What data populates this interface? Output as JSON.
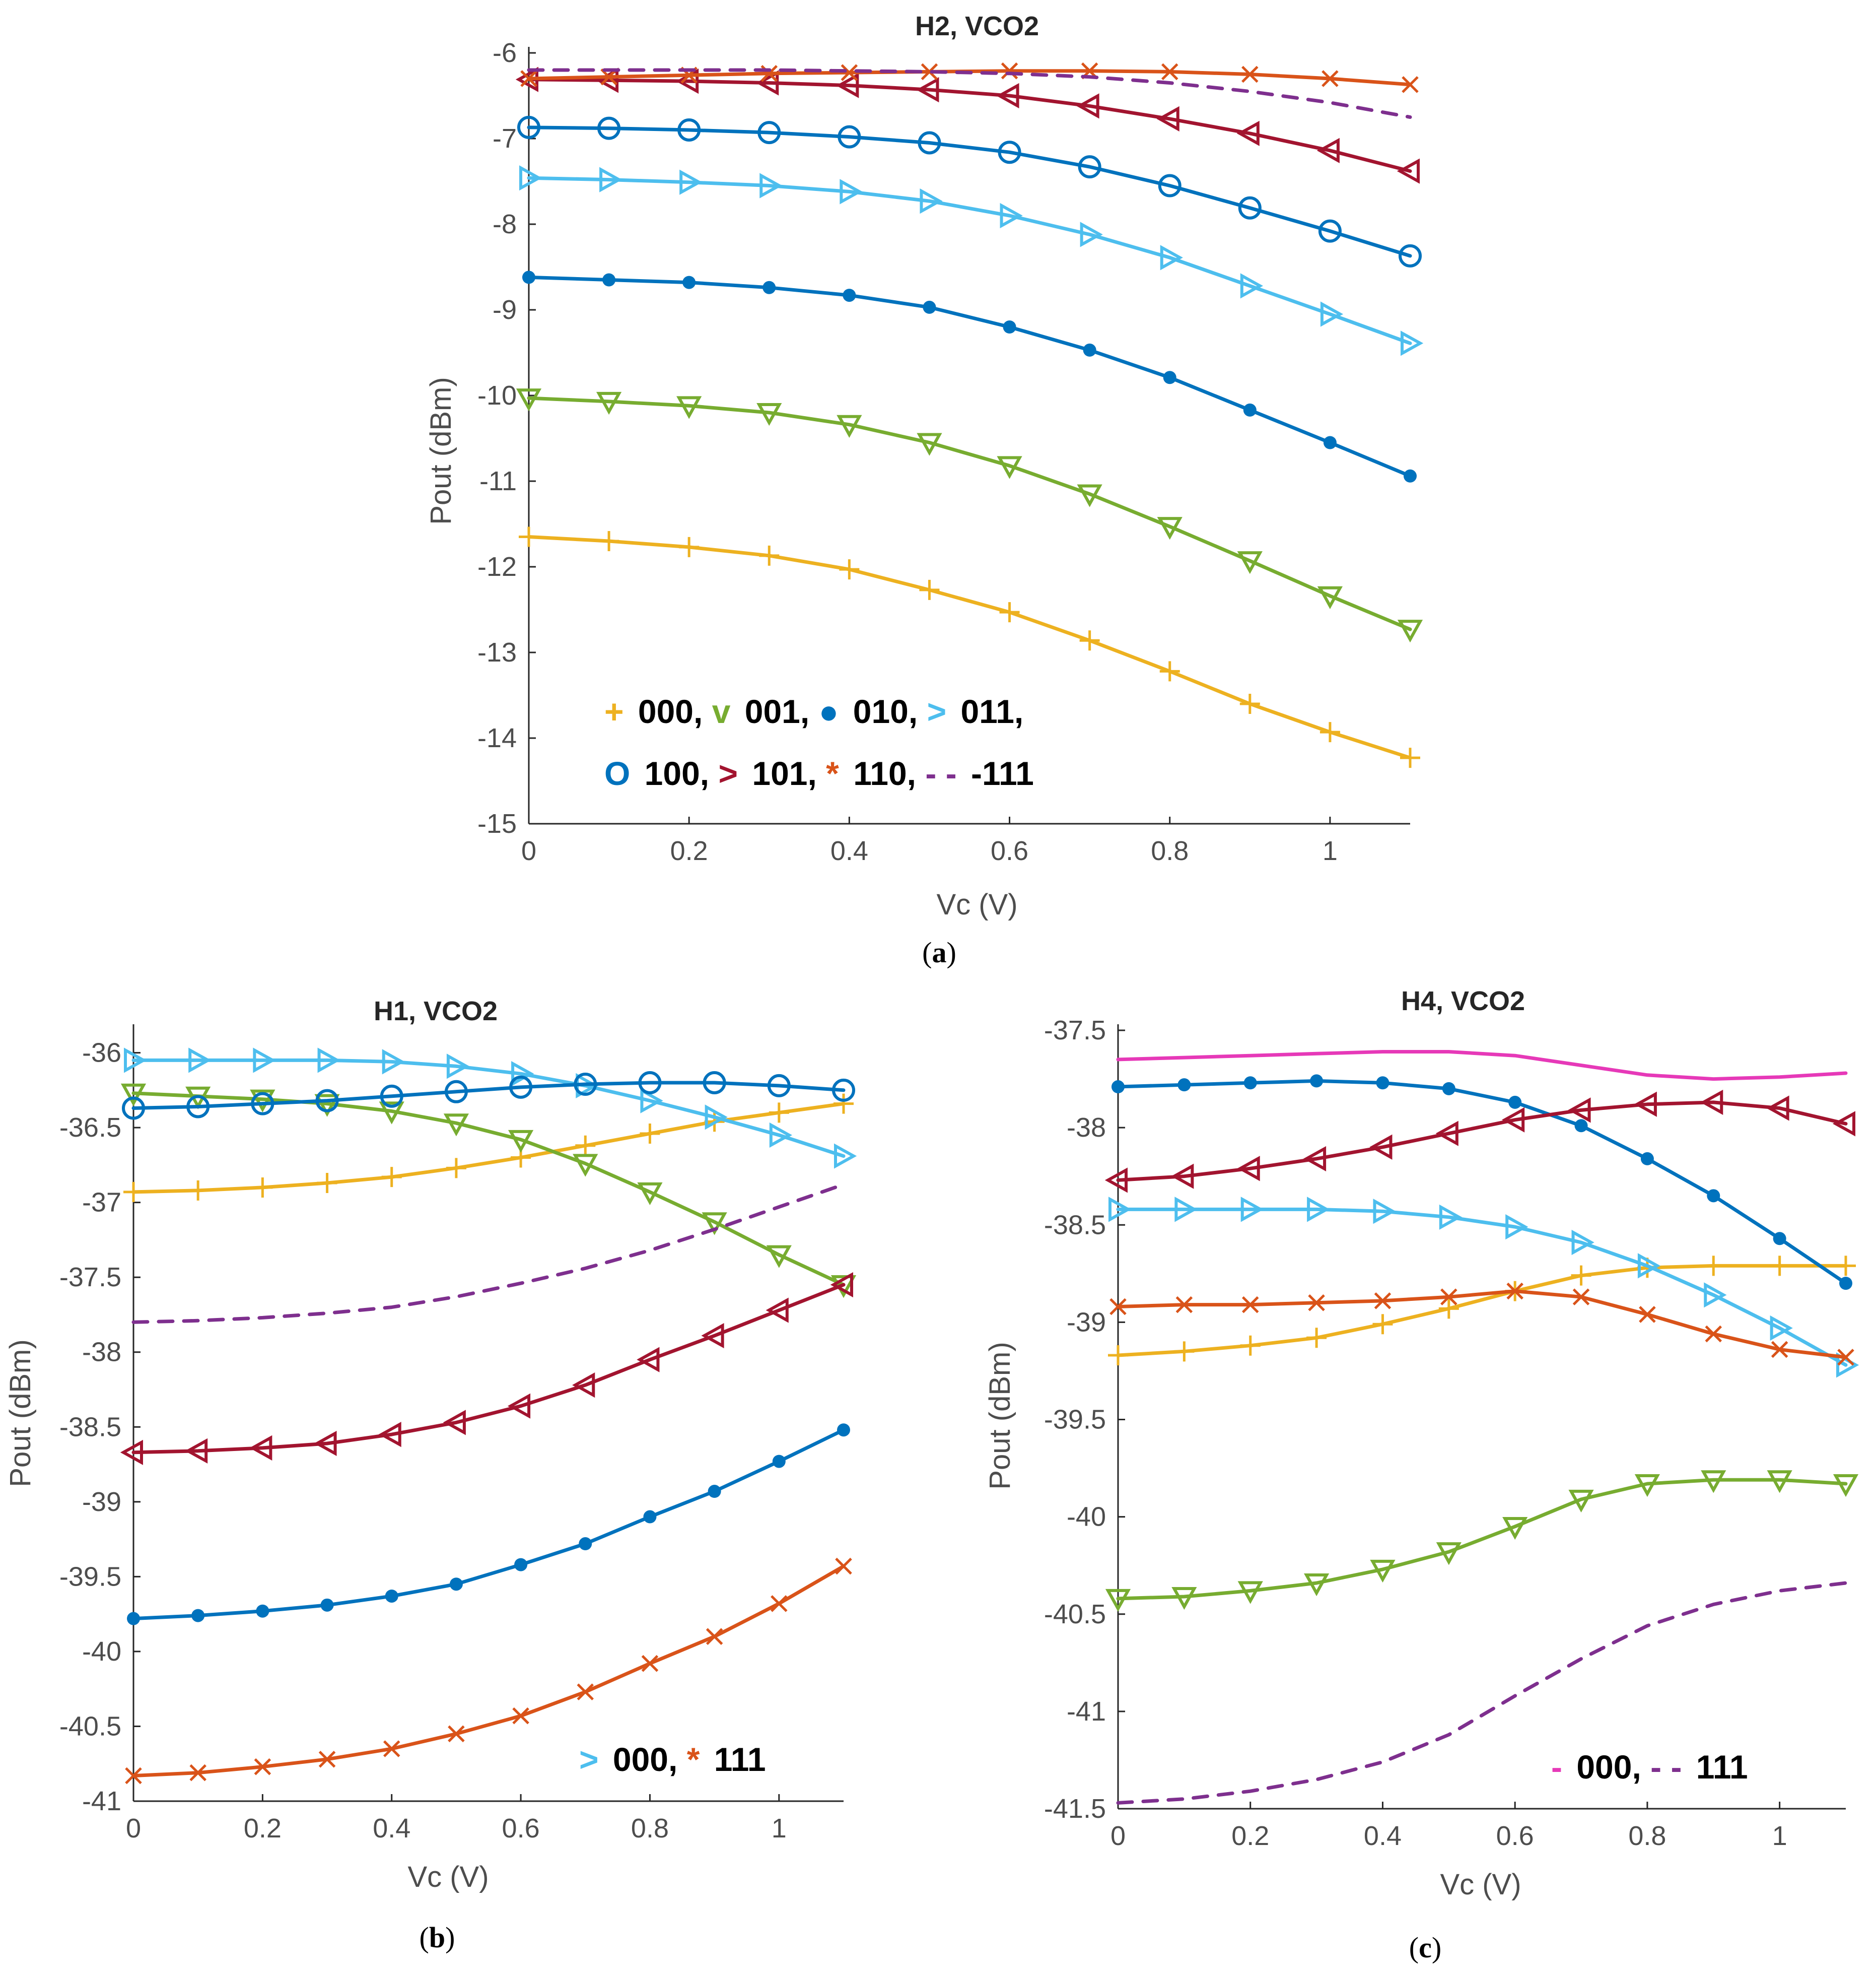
{
  "colors": {
    "c000": "#EDB120",
    "c001": "#77AC30",
    "c010": "#0072BD",
    "c011": "#4DBEEE",
    "c100": "#0072BD",
    "c101": "#A2142F",
    "c110": "#D95319",
    "c111": "#7E2F8E",
    "magenta": "#E639B8",
    "axis": "#262626",
    "ticktext": "#4d4d4d"
  },
  "chart_data": [
    {
      "id": "a",
      "type": "line",
      "title": "H2, VCO2",
      "xlabel": "Vc (V)",
      "ylabel": "Pout (dBm)",
      "caption": "a",
      "xlim": [
        0,
        1.1
      ],
      "ylim": [
        -15,
        -6
      ],
      "xticks": [
        0,
        0.2,
        0.4,
        0.6,
        0.8,
        1
      ],
      "xtick_labels": [
        "0",
        "0.2",
        "0.4",
        "0.6",
        "0.8",
        "1"
      ],
      "yticks": [
        -15,
        -14,
        -13,
        -12,
        -11,
        -10,
        -9,
        -8,
        -7,
        -6
      ],
      "ytick_labels": [
        "-15",
        "-14",
        "-13",
        "-12",
        "-11",
        "-10",
        "-9",
        "-8",
        "-7",
        "-6"
      ],
      "x": [
        0,
        0.1,
        0.2,
        0.3,
        0.4,
        0.5,
        0.6,
        0.7,
        0.8,
        0.9,
        1.0,
        1.1
      ],
      "series": [
        {
          "name": "000",
          "color_key": "c000",
          "marker": "plus",
          "values": [
            -11.65,
            -11.7,
            -11.77,
            -11.87,
            -12.03,
            -12.27,
            -12.53,
            -12.86,
            -13.22,
            -13.6,
            -13.93,
            -14.23
          ]
        },
        {
          "name": "001",
          "color_key": "c001",
          "marker": "tri-down",
          "values": [
            -10.03,
            -10.07,
            -10.12,
            -10.2,
            -10.34,
            -10.55,
            -10.82,
            -11.15,
            -11.53,
            -11.93,
            -12.34,
            -12.73
          ]
        },
        {
          "name": "010",
          "color_key": "c010",
          "marker": "dot",
          "values": [
            -8.62,
            -8.65,
            -8.68,
            -8.74,
            -8.83,
            -8.97,
            -9.2,
            -9.47,
            -9.79,
            -10.17,
            -10.55,
            -10.94
          ]
        },
        {
          "name": "011",
          "color_key": "c011",
          "marker": "tri-right",
          "values": [
            -7.46,
            -7.48,
            -7.51,
            -7.55,
            -7.62,
            -7.73,
            -7.9,
            -8.12,
            -8.39,
            -8.72,
            -9.05,
            -9.39
          ]
        },
        {
          "name": "100",
          "color_key": "c100",
          "marker": "circle",
          "values": [
            -6.87,
            -6.88,
            -6.9,
            -6.93,
            -6.98,
            -7.05,
            -7.16,
            -7.33,
            -7.55,
            -7.81,
            -8.08,
            -8.37
          ]
        },
        {
          "name": "101",
          "color_key": "c101",
          "marker": "tri-left",
          "values": [
            -6.31,
            -6.32,
            -6.33,
            -6.35,
            -6.38,
            -6.43,
            -6.5,
            -6.62,
            -6.77,
            -6.94,
            -7.14,
            -7.38
          ]
        },
        {
          "name": "110",
          "color_key": "c110",
          "marker": "x",
          "values": [
            -6.3,
            -6.28,
            -6.26,
            -6.24,
            -6.23,
            -6.22,
            -6.21,
            -6.21,
            -6.22,
            -6.25,
            -6.3,
            -6.37
          ]
        },
        {
          "name": "111",
          "color_key": "c111",
          "marker": "dashed",
          "values": [
            -6.2,
            -6.2,
            -6.2,
            -6.2,
            -6.21,
            -6.22,
            -6.24,
            -6.28,
            -6.35,
            -6.45,
            -6.58,
            -6.75
          ]
        }
      ],
      "legend": {
        "location": "bottom-left",
        "rows": [
          [
            {
              "sym": "+",
              "color_key": "c000",
              "text": "000,"
            },
            {
              "sym": "v",
              "color_key": "c001",
              "text": "001,"
            },
            {
              "sym": "●",
              "color_key": "c010",
              "text": "010,"
            },
            {
              "sym": ">",
              "color_key": "c011",
              "text": "011,"
            }
          ],
          [
            {
              "sym": "O",
              "color_key": "c100",
              "text": "100,"
            },
            {
              "sym": ">",
              "color_key": "c101",
              "text": "101,"
            },
            {
              "sym": "*",
              "color_key": "c110",
              "text": "110,"
            },
            {
              "sym": "- -",
              "color_key": "c111",
              "text": "-111"
            }
          ]
        ]
      }
    },
    {
      "id": "b",
      "type": "line",
      "title": "H1, VCO2",
      "xlabel": "Vc (V)",
      "ylabel": "Pout (dBm)",
      "caption": "b",
      "xlim": [
        0,
        1.1
      ],
      "ylim": [
        -41,
        -35.85
      ],
      "xticks": [
        0,
        0.2,
        0.4,
        0.6,
        0.8,
        1
      ],
      "xtick_labels": [
        "0",
        "0.2",
        "0.4",
        "0.6",
        "0.8",
        "1"
      ],
      "yticks": [
        -41,
        -40.5,
        -40,
        -39.5,
        -39,
        -38.5,
        -38,
        -37.5,
        -37,
        -36.5,
        -36
      ],
      "ytick_labels": [
        "-41",
        "-40.5",
        "-40",
        "-39.5",
        "-39",
        "-38.5",
        "-38",
        "-37.5",
        "-37",
        "-36.5",
        "-36"
      ],
      "x": [
        0,
        0.1,
        0.2,
        0.3,
        0.4,
        0.5,
        0.6,
        0.7,
        0.8,
        0.9,
        1.0,
        1.1
      ],
      "series": [
        {
          "name": "000",
          "color_key": "c000",
          "marker": "plus",
          "values": [
            -36.93,
            -36.92,
            -36.9,
            -36.87,
            -36.83,
            -36.77,
            -36.7,
            -36.62,
            -36.54,
            -36.46,
            -36.4,
            -36.34
          ]
        },
        {
          "name": "001",
          "color_key": "c001",
          "marker": "tri-down",
          "values": [
            -36.27,
            -36.29,
            -36.31,
            -36.34,
            -36.39,
            -36.47,
            -36.58,
            -36.74,
            -36.93,
            -37.13,
            -37.35,
            -37.55
          ]
        },
        {
          "name": "010",
          "color_key": "c010",
          "marker": "dot",
          "values": [
            -39.78,
            -39.76,
            -39.73,
            -39.69,
            -39.63,
            -39.55,
            -39.42,
            -39.28,
            -39.1,
            -38.93,
            -38.73,
            -38.52
          ]
        },
        {
          "name": "011",
          "color_key": "c011",
          "marker": "tri-right",
          "values": [
            -36.05,
            -36.05,
            -36.05,
            -36.05,
            -36.06,
            -36.09,
            -36.14,
            -36.22,
            -36.32,
            -36.43,
            -36.55,
            -36.69
          ]
        },
        {
          "name": "100",
          "color_key": "c100",
          "marker": "circle",
          "values": [
            -36.37,
            -36.36,
            -36.34,
            -36.32,
            -36.29,
            -36.26,
            -36.23,
            -36.21,
            -36.2,
            -36.2,
            -36.22,
            -36.25
          ]
        },
        {
          "name": "101",
          "color_key": "c101",
          "marker": "tri-left",
          "values": [
            -38.67,
            -38.66,
            -38.64,
            -38.61,
            -38.55,
            -38.47,
            -38.36,
            -38.22,
            -38.05,
            -37.89,
            -37.72,
            -37.55
          ]
        },
        {
          "name": "110",
          "color_key": "c110",
          "marker": "x",
          "values": [
            -40.83,
            -40.81,
            -40.77,
            -40.72,
            -40.65,
            -40.55,
            -40.43,
            -40.27,
            -40.08,
            -39.9,
            -39.68,
            -39.43
          ]
        },
        {
          "name": "111",
          "color_key": "c111",
          "marker": "dashed",
          "values": [
            -37.8,
            -37.79,
            -37.77,
            -37.74,
            -37.7,
            -37.63,
            -37.54,
            -37.44,
            -37.32,
            -37.18,
            -37.03,
            -36.88
          ]
        }
      ],
      "legend": {
        "location": "bottom-right",
        "rows": [
          [
            {
              "sym": ">",
              "color_key": "c011",
              "text": "000,"
            },
            {
              "sym": "*",
              "color_key": "c110",
              "text": "111"
            }
          ]
        ]
      }
    },
    {
      "id": "c",
      "type": "line",
      "title": "H4, VCO2",
      "xlabel": "Vc (V)",
      "ylabel": "Pout (dBm)",
      "caption": "c",
      "xlim": [
        0,
        1.1
      ],
      "ylim": [
        -41.5,
        -37.5
      ],
      "xticks": [
        0,
        0.2,
        0.4,
        0.6,
        0.8,
        1
      ],
      "xtick_labels": [
        "0",
        "0.2",
        "0.4",
        "0.6",
        "0.8",
        "1"
      ],
      "yticks": [
        -41.5,
        -41,
        -40.5,
        -40,
        -39.5,
        -39,
        -38.5,
        -38,
        -37.5
      ],
      "ytick_labels": [
        "-41.5",
        "-41",
        "-40.5",
        "-40",
        "-39.5",
        "-39",
        "-38.5",
        "-38",
        "-37.5"
      ],
      "x": [
        0,
        0.1,
        0.2,
        0.3,
        0.4,
        0.5,
        0.6,
        0.7,
        0.8,
        0.9,
        1.0,
        1.1
      ],
      "series": [
        {
          "name": "000",
          "color_key": "c000",
          "marker": "plus",
          "values": [
            -39.17,
            -39.15,
            -39.12,
            -39.08,
            -39.01,
            -38.93,
            -38.84,
            -38.76,
            -38.72,
            -38.71,
            -38.71,
            -38.71
          ]
        },
        {
          "name": "001",
          "color_key": "c001",
          "marker": "tri-down",
          "values": [
            -40.42,
            -40.41,
            -40.38,
            -40.34,
            -40.27,
            -40.18,
            -40.05,
            -39.91,
            -39.83,
            -39.81,
            -39.81,
            -39.83
          ]
        },
        {
          "name": "010",
          "color_key": "c010",
          "marker": "dot",
          "values": [
            -37.79,
            -37.78,
            -37.77,
            -37.76,
            -37.77,
            -37.8,
            -37.87,
            -37.99,
            -38.16,
            -38.35,
            -38.57,
            -38.8
          ]
        },
        {
          "name": "011",
          "color_key": "c011",
          "marker": "tri-right",
          "values": [
            -38.42,
            -38.42,
            -38.42,
            -38.42,
            -38.43,
            -38.46,
            -38.51,
            -38.59,
            -38.71,
            -38.86,
            -39.03,
            -39.22
          ]
        },
        {
          "name": "101",
          "color_key": "c101",
          "marker": "tri-left",
          "values": [
            -38.27,
            -38.25,
            -38.21,
            -38.16,
            -38.1,
            -38.03,
            -37.96,
            -37.91,
            -37.88,
            -37.87,
            -37.9,
            -37.98
          ]
        },
        {
          "name": "110",
          "color_key": "c110",
          "marker": "x",
          "values": [
            -38.92,
            -38.91,
            -38.91,
            -38.9,
            -38.89,
            -38.87,
            -38.84,
            -38.87,
            -38.96,
            -39.06,
            -39.14,
            -39.18
          ]
        },
        {
          "name": "000 (magenta)",
          "color_key": "magenta",
          "marker": "solid",
          "values": [
            -37.65,
            -37.64,
            -37.63,
            -37.62,
            -37.61,
            -37.61,
            -37.63,
            -37.68,
            -37.73,
            -37.75,
            -37.74,
            -37.72
          ]
        },
        {
          "name": "111",
          "color_key": "c111",
          "marker": "dashed",
          "values": [
            -41.47,
            -41.45,
            -41.41,
            -41.35,
            -41.26,
            -41.12,
            -40.92,
            -40.73,
            -40.56,
            -40.45,
            -40.38,
            -40.34
          ]
        }
      ],
      "legend": {
        "location": "bottom-right",
        "rows": [
          [
            {
              "sym": "-",
              "color_key": "magenta",
              "text": "000,"
            },
            {
              "sym": "- -",
              "color_key": "c111",
              "text": "111"
            }
          ]
        ]
      }
    }
  ]
}
